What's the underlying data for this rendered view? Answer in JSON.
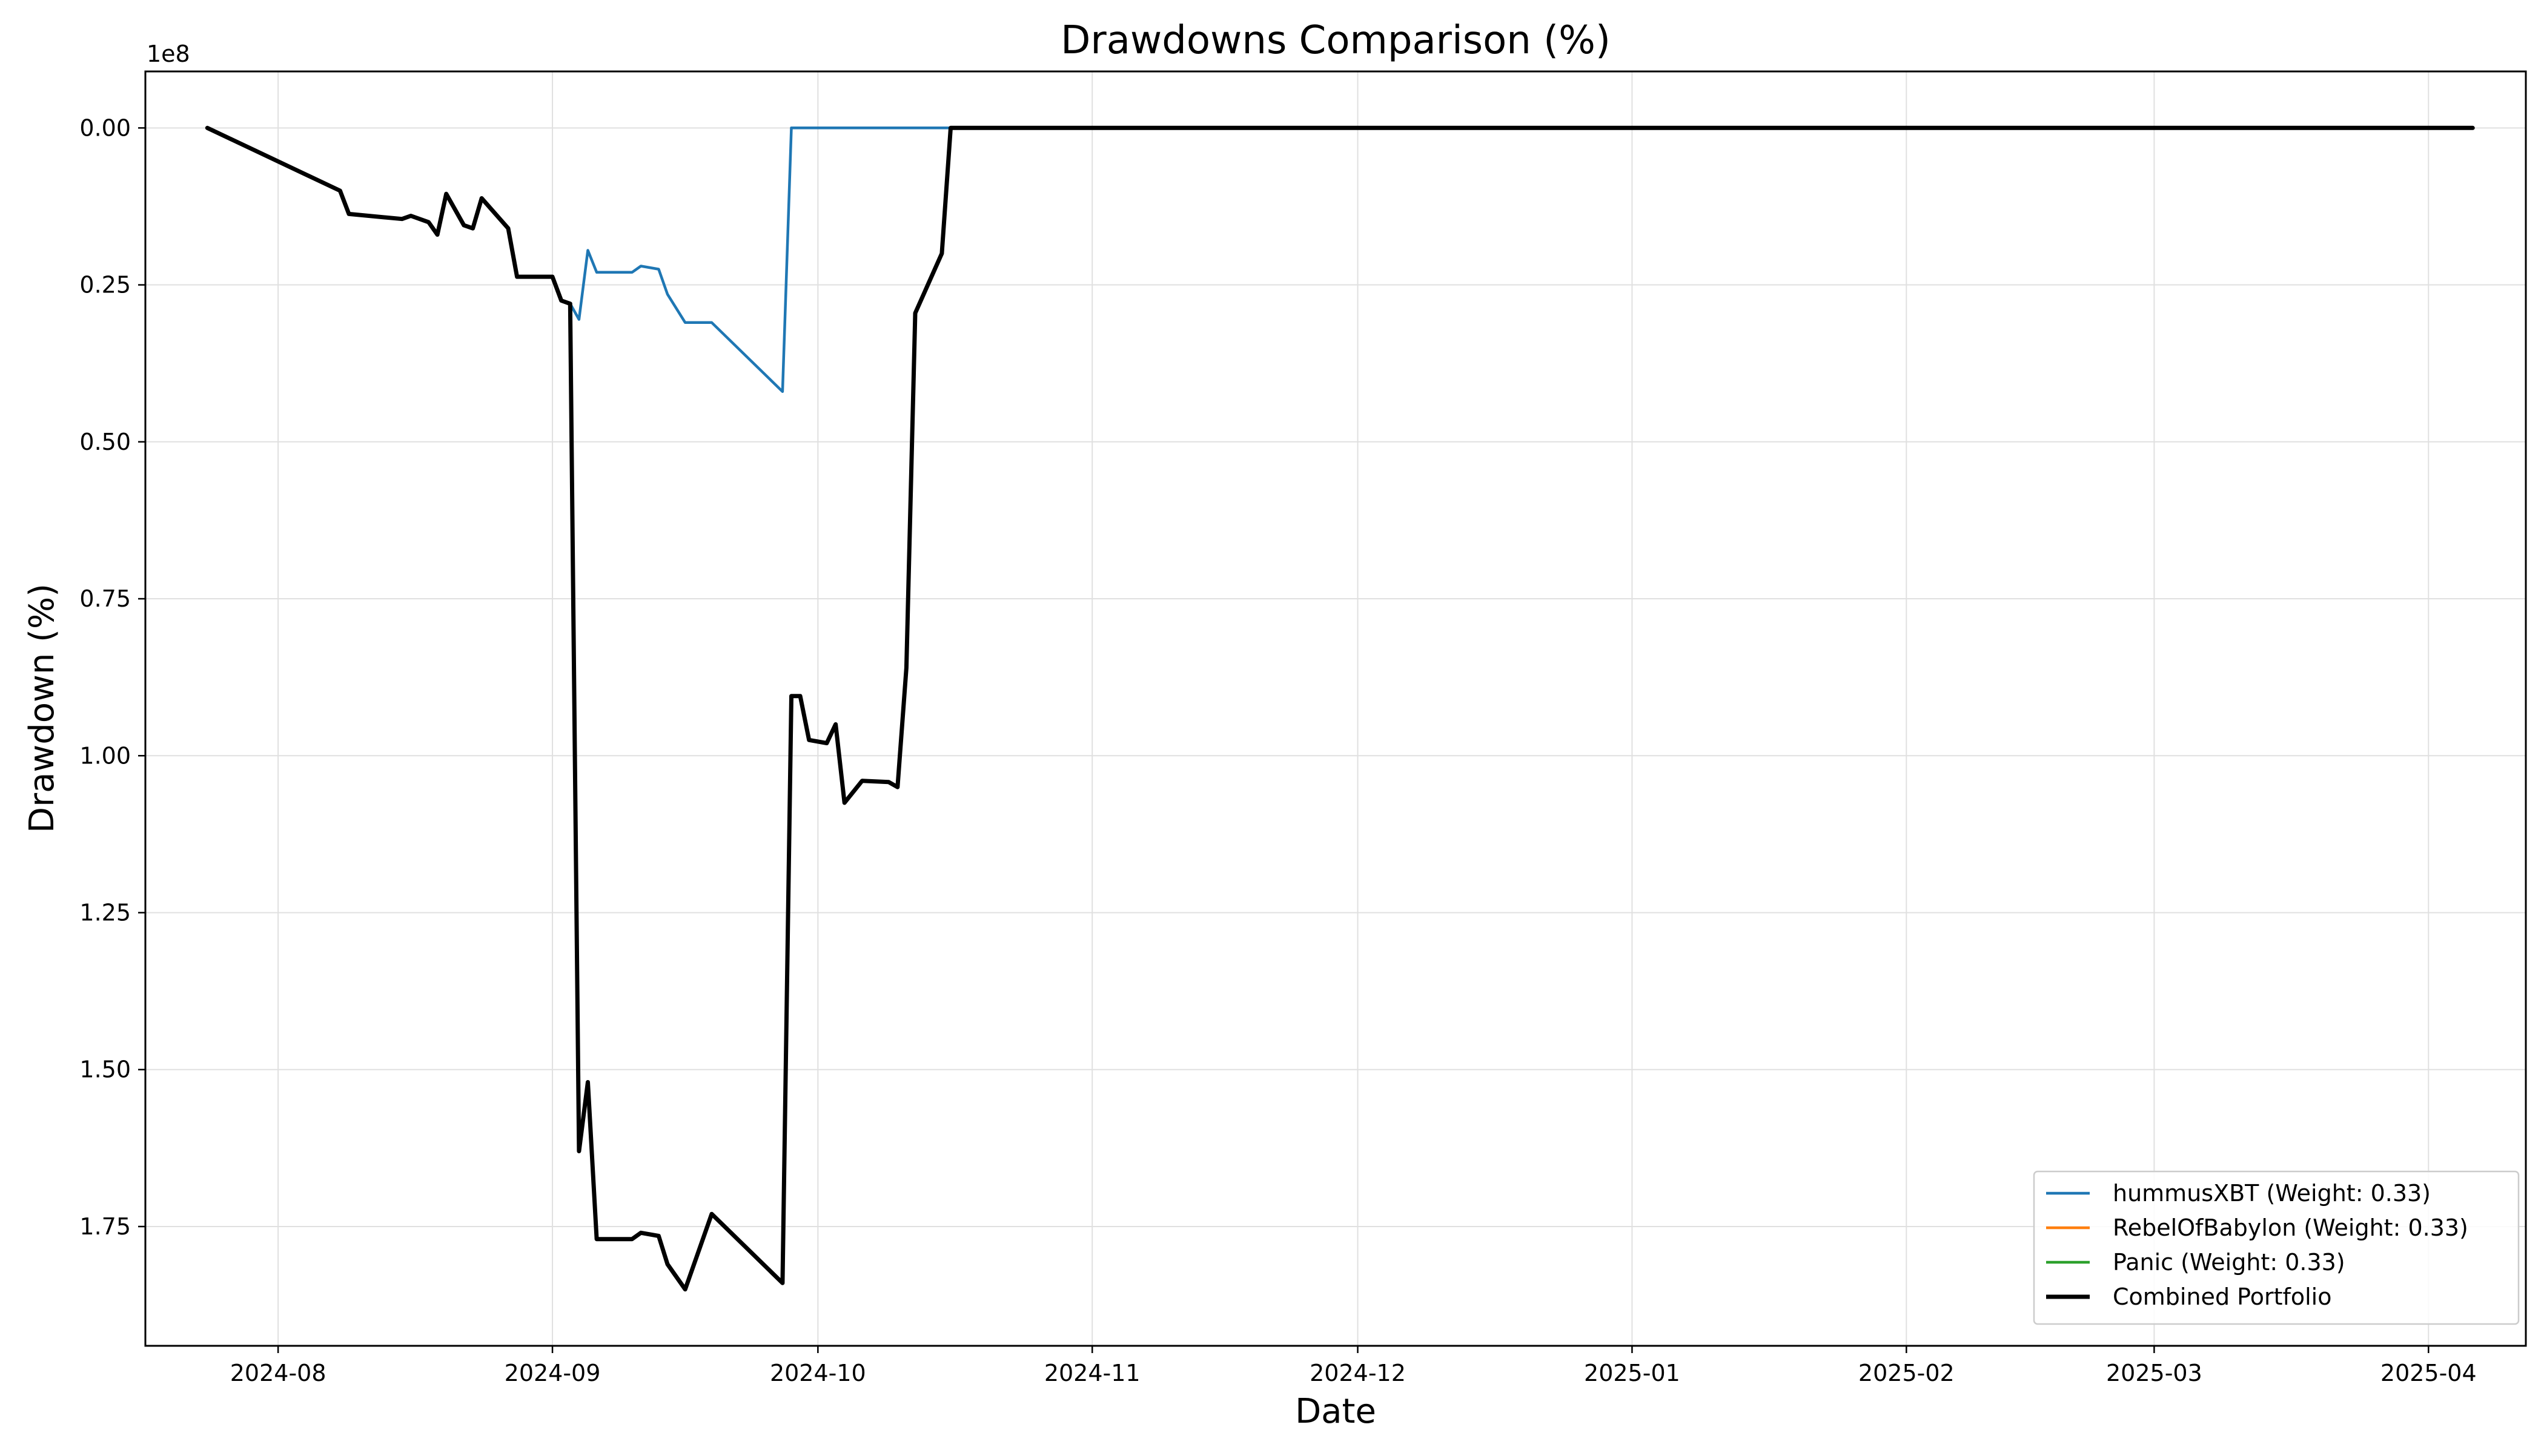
{
  "chart_data": {
    "type": "line",
    "title": "Drawdowns Comparison (%)",
    "xlabel": "Date",
    "ylabel": "Drawdown (%)",
    "y_offset_label": "1e8",
    "y_scale": 100000000,
    "y_inverted": true,
    "ylim": [
      1.94,
      -0.09
    ],
    "xlim": [
      "2024-07-17",
      "2025-04-12"
    ],
    "grid": true,
    "legend_position": "lower-right",
    "x_ticks": [
      "2024-08",
      "2024-09",
      "2024-10",
      "2024-11",
      "2024-12",
      "2025-01",
      "2025-02",
      "2025-03",
      "2025-04"
    ],
    "y_ticks": [
      "0.00",
      "0.25",
      "0.50",
      "0.75",
      "1.00",
      "1.25",
      "1.50",
      "1.75"
    ],
    "series": [
      {
        "name": "hummusXBT (Weight: 0.33)",
        "color": "#1f77b4",
        "points": [
          [
            "2024-07-24",
            0.0
          ],
          [
            "2024-08-08",
            0.1
          ],
          [
            "2024-08-09",
            0.137
          ],
          [
            "2024-08-15",
            0.145
          ],
          [
            "2024-08-16",
            0.14
          ],
          [
            "2024-08-18",
            0.15
          ],
          [
            "2024-08-19",
            0.17
          ],
          [
            "2024-08-20",
            0.105
          ],
          [
            "2024-08-22",
            0.155
          ],
          [
            "2024-08-23",
            0.16
          ],
          [
            "2024-08-24",
            0.112
          ],
          [
            "2024-08-27",
            0.16
          ],
          [
            "2024-08-28",
            0.237
          ],
          [
            "2024-09-01",
            0.237
          ],
          [
            "2024-09-02",
            0.275
          ],
          [
            "2024-09-03",
            0.28
          ],
          [
            "2024-09-04",
            0.305
          ],
          [
            "2024-09-05",
            0.195
          ],
          [
            "2024-09-06",
            0.23
          ],
          [
            "2024-09-10",
            0.23
          ],
          [
            "2024-09-11",
            0.22
          ],
          [
            "2024-09-13",
            0.225
          ],
          [
            "2024-09-14",
            0.265
          ],
          [
            "2024-09-16",
            0.31
          ],
          [
            "2024-09-19",
            0.31
          ],
          [
            "2024-09-27",
            0.42
          ],
          [
            "2024-09-28",
            0.0
          ],
          [
            "2024-10-14",
            0.0
          ],
          [
            "2025-04-06",
            0.0
          ]
        ]
      },
      {
        "name": "RebelOfBabylon (Weight: 0.33)",
        "color": "#ff7f0e",
        "points": []
      },
      {
        "name": "Panic (Weight: 0.33)",
        "color": "#2ca02c",
        "points": []
      },
      {
        "name": "Combined Portfolio",
        "color": "#000000",
        "points": [
          [
            "2024-07-24",
            0.0
          ],
          [
            "2024-08-08",
            0.1
          ],
          [
            "2024-08-09",
            0.137
          ],
          [
            "2024-08-15",
            0.145
          ],
          [
            "2024-08-16",
            0.14
          ],
          [
            "2024-08-18",
            0.15
          ],
          [
            "2024-08-19",
            0.17
          ],
          [
            "2024-08-20",
            0.105
          ],
          [
            "2024-08-22",
            0.155
          ],
          [
            "2024-08-23",
            0.16
          ],
          [
            "2024-08-24",
            0.112
          ],
          [
            "2024-08-27",
            0.16
          ],
          [
            "2024-08-28",
            0.237
          ],
          [
            "2024-09-01",
            0.237
          ],
          [
            "2024-09-02",
            0.275
          ],
          [
            "2024-09-03",
            0.28
          ],
          [
            "2024-09-04",
            1.63
          ],
          [
            "2024-09-05",
            1.52
          ],
          [
            "2024-09-06",
            1.77
          ],
          [
            "2024-09-10",
            1.77
          ],
          [
            "2024-09-11",
            1.76
          ],
          [
            "2024-09-13",
            1.765
          ],
          [
            "2024-09-14",
            1.81
          ],
          [
            "2024-09-16",
            1.85
          ],
          [
            "2024-09-19",
            1.73
          ],
          [
            "2024-09-27",
            1.84
          ],
          [
            "2024-09-28",
            0.905
          ],
          [
            "2024-09-29",
            0.905
          ],
          [
            "2024-09-30",
            0.975
          ],
          [
            "2024-10-02",
            0.98
          ],
          [
            "2024-10-03",
            0.95
          ],
          [
            "2024-10-04",
            1.075
          ],
          [
            "2024-10-06",
            1.04
          ],
          [
            "2024-10-09",
            1.042
          ],
          [
            "2024-10-10",
            1.05
          ],
          [
            "2024-10-11",
            0.86
          ],
          [
            "2024-10-12",
            0.295
          ],
          [
            "2024-10-15",
            0.2
          ],
          [
            "2024-10-16",
            0.0
          ],
          [
            "2025-04-06",
            0.0
          ]
        ]
      }
    ]
  }
}
